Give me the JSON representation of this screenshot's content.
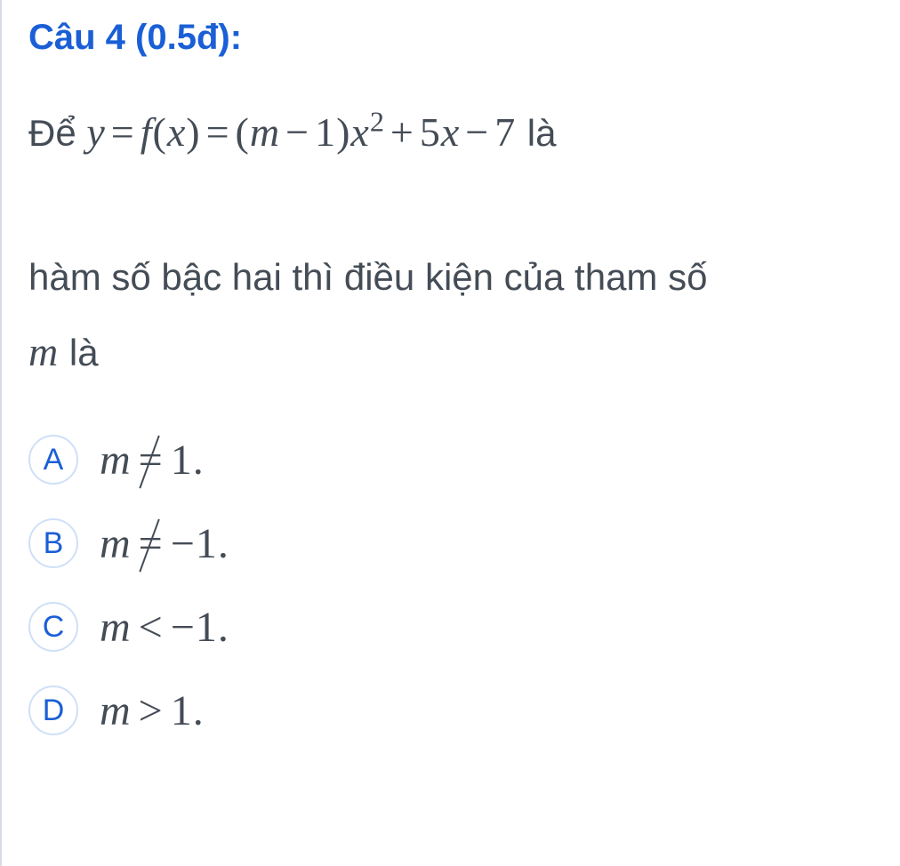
{
  "header": {
    "label": "Câu 4 (0.5đ):",
    "color": "#1a5fd6",
    "fontsize": 40,
    "fontweight": 700
  },
  "question": {
    "line1_prefix": "Để ",
    "line1_math": "y = f(x) = (m − 1)x² + 5x − 7",
    "line1_suffix": " là",
    "line2": "hàm số bậc hai thì điều kiện của tham số",
    "line3_math_var": "m",
    "line3_suffix": " là",
    "text_color": "#444c56",
    "fontsize": 42,
    "math_fontsize": 46
  },
  "options": [
    {
      "letter": "A",
      "math": "m ≠ 1.",
      "var": "m",
      "rel": "neq",
      "rhs": "1."
    },
    {
      "letter": "B",
      "math": "m ≠ −1.",
      "var": "m",
      "rel": "neq",
      "rhs": "−1."
    },
    {
      "letter": "C",
      "math": "m < −1.",
      "var": "m",
      "rel": "lt",
      "rhs": "−1."
    },
    {
      "letter": "D",
      "math": "m > 1.",
      "var": "m",
      "rel": "gt",
      "rhs": "1."
    }
  ],
  "styling": {
    "option_letter_border": "#cfe0f7",
    "option_letter_color": "#1a5fd6",
    "option_math_color": "#444c56",
    "option_math_fontsize": 48,
    "body_bg": "#ffffff",
    "border_left": "#d8dde4"
  }
}
